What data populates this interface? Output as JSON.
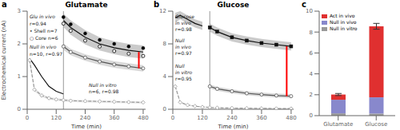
{
  "chart_data": [
    {
      "type": "line",
      "panel_label": "a",
      "title": "Glutamate",
      "x_label": "Time (min)",
      "y_label": "Electrochemical current (nA)",
      "xlim": [
        0,
        490
      ],
      "xticks": [
        0,
        120,
        240,
        360,
        480
      ],
      "ylim": [
        0,
        3.0
      ],
      "yticks": [
        0,
        1,
        2,
        3
      ],
      "series": [
        {
          "color": "#999999",
          "line_style": "dashed",
          "marker": "open_diamond",
          "x": [
            10,
            30,
            60,
            90,
            120,
            150,
            180,
            240,
            300,
            360,
            420,
            480
          ],
          "values": [
            1.5,
            0.6,
            0.42,
            0.34,
            0.3,
            0.28,
            0.26,
            0.25,
            0.24,
            0.23,
            0.22,
            0.21
          ],
          "upper": [
            1.62,
            0.66,
            0.47,
            0.38,
            0.34,
            0.32,
            0.3,
            0.28,
            0.27,
            0.26,
            0.25,
            0.24
          ],
          "lower": [
            1.38,
            0.54,
            0.37,
            0.3,
            0.26,
            0.24,
            0.22,
            0.21,
            0.2,
            0.19,
            0.18,
            0.17
          ]
        },
        {
          "color": "#555555",
          "line_style": "solid",
          "marker": "open_circle",
          "x": [
            150,
            180,
            240,
            300,
            360,
            420,
            480
          ],
          "values": [
            1.92,
            1.75,
            1.58,
            1.46,
            1.37,
            1.31,
            1.25
          ],
          "upper": [
            2.02,
            1.85,
            1.68,
            1.56,
            1.47,
            1.41,
            1.35
          ],
          "lower": [
            1.82,
            1.65,
            1.48,
            1.36,
            1.27,
            1.21,
            1.15
          ]
        },
        {
          "color": "#111111",
          "line_style": "solid",
          "x": [
            150,
            180,
            240,
            300,
            360,
            420,
            480
          ],
          "values": [
            2.72,
            2.5,
            2.2,
            2.0,
            1.88,
            1.8,
            1.75
          ],
          "upper": [
            2.92,
            2.72,
            2.42,
            2.2,
            2.08,
            2.0,
            1.95
          ],
          "lower": [
            2.52,
            2.28,
            1.98,
            1.8,
            1.68,
            1.6,
            1.55
          ]
        },
        {
          "color": "#000000",
          "line_style": "none",
          "marker": "circle",
          "x": [
            150,
            180,
            240,
            300,
            360,
            420,
            480
          ],
          "values": [
            2.82,
            2.6,
            2.32,
            2.12,
            2.0,
            1.92,
            1.87
          ]
        },
        {
          "color": "#000000",
          "line_style": "none",
          "marker": "open_circle",
          "x": [
            150,
            180,
            240,
            300,
            360,
            420,
            480
          ],
          "values": [
            2.62,
            2.4,
            2.1,
            1.92,
            1.78,
            1.7,
            1.63
          ]
        },
        {
          "color": "#111111",
          "line_style": "solid",
          "x": [
            10,
            30,
            60,
            90,
            120,
            150
          ],
          "values": [
            1.55,
            1.35,
            1.0,
            0.7,
            0.55,
            0.47
          ]
        }
      ],
      "vline": {
        "x": 150,
        "color": "#808080"
      },
      "bracket": {
        "x": 462,
        "y": [
          1.25,
          1.75
        ],
        "color": "#ff0000"
      },
      "annotations": [
        "Glu in vivo",
        "r=0.94",
        "• Shell n=7",
        "○ Core n=6",
        "Null in vivo",
        "n=10, r=0.97",
        "Null in vitro",
        "n=6, r=0.98"
      ]
    },
    {
      "type": "line",
      "panel_label": "b",
      "title": "Glucose",
      "x_label": "Time (min)",
      "xlim": [
        0,
        490
      ],
      "xticks": [
        0,
        120,
        240,
        360,
        480
      ],
      "ylim": [
        0,
        12
      ],
      "yticks": [
        0,
        4,
        8,
        12
      ],
      "series": [
        {
          "color": "#999999",
          "line_style": "dashed",
          "marker": "open_diamond",
          "x": [
            10,
            30,
            60,
            90,
            120,
            150,
            180,
            240,
            300,
            360,
            420,
            480
          ],
          "values": [
            2.8,
            0.85,
            0.52,
            0.38,
            0.28,
            0.22,
            0.18,
            0.15,
            0.13,
            0.11,
            0.09,
            0.08
          ],
          "upper": [
            3.0,
            0.95,
            0.6,
            0.44,
            0.33,
            0.27,
            0.23,
            0.19,
            0.17,
            0.15,
            0.13,
            0.12
          ],
          "lower": [
            2.6,
            0.75,
            0.44,
            0.32,
            0.23,
            0.17,
            0.13,
            0.1,
            0.08,
            0.06,
            0.05,
            0.04
          ]
        },
        {
          "color": "#555555",
          "line_style": "solid",
          "marker": "open_circle",
          "x": [
            150,
            180,
            240,
            300,
            360,
            420,
            480
          ],
          "values": [
            2.8,
            2.5,
            2.2,
            1.95,
            1.8,
            1.68,
            1.6
          ],
          "upper": [
            3.05,
            2.75,
            2.45,
            2.2,
            2.05,
            1.93,
            1.85
          ],
          "lower": [
            2.55,
            2.25,
            1.95,
            1.7,
            1.55,
            1.43,
            1.35
          ]
        },
        {
          "color": "#111111",
          "line_style": "solid",
          "marker": "square",
          "x": [
            150,
            180,
            240,
            300,
            360,
            420,
            480
          ],
          "values": [
            10.0,
            9.5,
            8.8,
            8.4,
            8.1,
            7.9,
            7.7
          ],
          "upper": [
            10.5,
            10.0,
            9.3,
            8.9,
            8.6,
            8.4,
            8.2
          ],
          "lower": [
            9.5,
            9.0,
            8.3,
            7.9,
            7.6,
            7.4,
            7.2
          ]
        },
        {
          "color": "#111111",
          "line_style": "solid",
          "x": [
            10,
            30,
            60,
            90,
            120
          ],
          "values": [
            11.2,
            11.5,
            11.0,
            10.5,
            10.2
          ],
          "upper": [
            11.8,
            12.0,
            11.5,
            11.0,
            10.7
          ],
          "lower": [
            10.6,
            11.0,
            10.5,
            10.0,
            9.7
          ]
        }
      ],
      "vline": {
        "x": 150,
        "color": "#808080"
      },
      "bracket": {
        "x": 462,
        "y": [
          1.6,
          7.7
        ],
        "color": "#ff0000"
      },
      "annotations": [
        "Glucose",
        "in vivo",
        "r=0.98",
        "Null",
        "in vivo",
        "r=0.97",
        "Null",
        "in vitro",
        "r=0.95"
      ]
    },
    {
      "type": "bar",
      "panel_label": "c",
      "stacked": true,
      "legend": "upper left",
      "categories": [
        "Glutamate",
        "Glucose"
      ],
      "ylim": [
        0,
        10
      ],
      "yticks": [
        0,
        2,
        4,
        6,
        8,
        10
      ],
      "series": [
        {
          "name": "Null in vitro",
          "color": "#999999",
          "values": [
            0.22,
            0.2
          ]
        },
        {
          "name": "Null in vivo",
          "color": "#8888cc",
          "values": [
            1.3,
            1.55
          ]
        },
        {
          "name": "Act in vivo",
          "color": "#e03030",
          "values": [
            0.5,
            6.8
          ],
          "errors": [
            0.1,
            0.28
          ]
        }
      ]
    }
  ]
}
